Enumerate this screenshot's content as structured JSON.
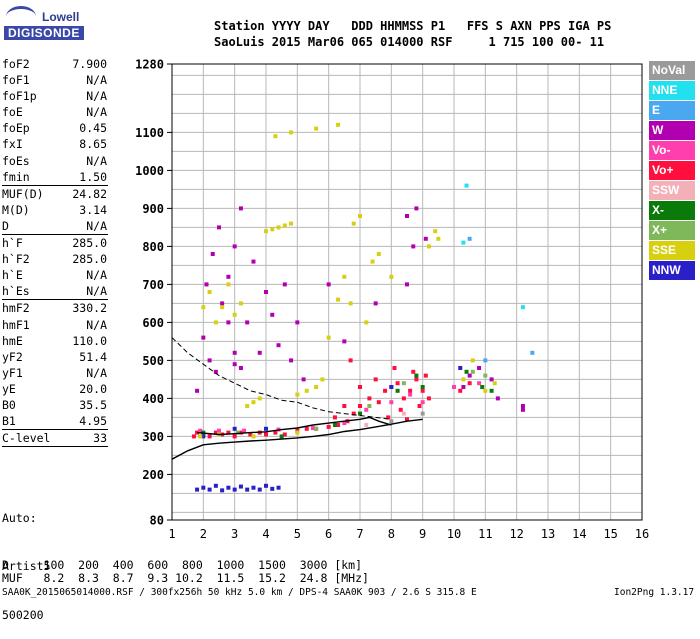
{
  "logo": {
    "top_text": "Lowell",
    "bottom_text": "DIGISONDE"
  },
  "header": {
    "line1": "Station YYYY DAY   DDD HHMMSS P1   FFS S AXN PPS IGA PS",
    "line2": "SaoLuis 2015 Mar06 065 014000 RSF     1 715 100 00- 11"
  },
  "params": [
    {
      "name": "foF2",
      "value": "7.900"
    },
    {
      "name": "foF1",
      "value": "N/A"
    },
    {
      "name": "foF1p",
      "value": "N/A"
    },
    {
      "name": "foE",
      "value": "N/A"
    },
    {
      "name": "foEp",
      "value": "0.45"
    },
    {
      "name": "fxI",
      "value": "8.65"
    },
    {
      "name": "foEs",
      "value": "N/A"
    },
    {
      "name": "fmin",
      "value": "1.50"
    },
    {
      "name": "MUF(D)",
      "value": "24.82"
    },
    {
      "name": "M(D)",
      "value": "3.14"
    },
    {
      "name": "D",
      "value": "N/A"
    },
    {
      "name": "h`F",
      "value": "285.0"
    },
    {
      "name": "h`F2",
      "value": "285.0"
    },
    {
      "name": "h`E",
      "value": "N/A"
    },
    {
      "name": "h`Es",
      "value": "N/A"
    },
    {
      "name": "hmF2",
      "value": "330.2"
    },
    {
      "name": "hmF1",
      "value": "N/A"
    },
    {
      "name": "hmE",
      "value": "110.0"
    },
    {
      "name": "yF2",
      "value": "51.4"
    },
    {
      "name": "yF1",
      "value": "N/A"
    },
    {
      "name": "yE",
      "value": "20.0"
    },
    {
      "name": "B0",
      "value": "35.5"
    },
    {
      "name": "B1",
      "value": "4.95"
    },
    {
      "name": "C-level",
      "value": "33"
    }
  ],
  "auto": {
    "line1": "Auto:",
    "line2": "Artist5",
    "line3": "500200"
  },
  "legend": [
    {
      "label": "NoVal",
      "color": "#9a9a9a"
    },
    {
      "label": "NNE",
      "color": "#22e0ee"
    },
    {
      "label": "E",
      "color": "#4aa8f0"
    },
    {
      "label": "W",
      "color": "#b000b0"
    },
    {
      "label": "Vo-",
      "color": "#ff3fae"
    },
    {
      "label": "Vo+",
      "color": "#ff0e3e"
    },
    {
      "label": "SSW",
      "color": "#f4b0b8"
    },
    {
      "label": "X-",
      "color": "#0a7a0a"
    },
    {
      "label": "X+",
      "color": "#7fb85a"
    },
    {
      "label": "SSE",
      "color": "#d7d010"
    },
    {
      "label": "NNW",
      "color": "#2a20c8"
    }
  ],
  "table": {
    "d_label": "D",
    "d_values": [
      "100",
      "200",
      "400",
      "600",
      "800",
      "1000",
      "1500",
      "3000"
    ],
    "d_unit": "[km]",
    "muf_label": "MUF",
    "muf_values": [
      "8.2",
      "8.3",
      "8.7",
      "9.3",
      "10.2",
      "11.5",
      "15.2",
      "24.8"
    ],
    "muf_unit": "[MHz]"
  },
  "footer": {
    "left": "SAA0K_2015065014000.RSF / 300fx256h 50 kHz 5.0 km / DPS-4 SAA0K 903 / 2.6 S 315.8 E",
    "right": "Ion2Png 1.3.17"
  },
  "chart_data": {
    "type": "scatter",
    "title": "",
    "xlabel": "",
    "ylabel": "",
    "xlim": [
      1,
      16
    ],
    "ylim": [
      80,
      1280
    ],
    "x_ticks": [
      1,
      2,
      3,
      4,
      5,
      6,
      7,
      8,
      9,
      10,
      11,
      12,
      13,
      14,
      15,
      16
    ],
    "y_ticks": [
      80,
      200,
      300,
      400,
      500,
      600,
      700,
      800,
      900,
      1000,
      1100,
      1280
    ],
    "grid": true,
    "series": [
      {
        "name": "Vo+",
        "color": "#ff0e3e",
        "points": [
          [
            1.7,
            300
          ],
          [
            1.8,
            310
          ],
          [
            2.0,
            305
          ],
          [
            2.2,
            300
          ],
          [
            2.4,
            310
          ],
          [
            2.6,
            305
          ],
          [
            2.8,
            310
          ],
          [
            3.0,
            300
          ],
          [
            3.2,
            310
          ],
          [
            3.5,
            305
          ],
          [
            3.8,
            310
          ],
          [
            4.0,
            305
          ],
          [
            4.3,
            310
          ],
          [
            4.6,
            305
          ],
          [
            5.0,
            315
          ],
          [
            5.3,
            320
          ],
          [
            5.6,
            320
          ],
          [
            6.0,
            325
          ],
          [
            6.3,
            330
          ],
          [
            6.6,
            340
          ],
          [
            6.8,
            360
          ],
          [
            7.0,
            380
          ],
          [
            7.3,
            400
          ],
          [
            7.6,
            390
          ],
          [
            7.8,
            420
          ],
          [
            8.0,
            430
          ],
          [
            8.2,
            440
          ],
          [
            8.4,
            400
          ],
          [
            8.6,
            420
          ],
          [
            8.8,
            450
          ],
          [
            9.0,
            420
          ],
          [
            9.2,
            400
          ],
          [
            6.7,
            500
          ],
          [
            7.5,
            450
          ],
          [
            8.1,
            480
          ],
          [
            8.7,
            470
          ],
          [
            9.1,
            460
          ],
          [
            7.0,
            430
          ],
          [
            6.5,
            380
          ],
          [
            6.2,
            350
          ],
          [
            8.3,
            370
          ],
          [
            8.9,
            380
          ],
          [
            7.9,
            350
          ],
          [
            8.5,
            345
          ],
          [
            10.5,
            440
          ],
          [
            10.2,
            420
          ]
        ]
      },
      {
        "name": "Vo-",
        "color": "#ff3fae",
        "points": [
          [
            1.9,
            315
          ],
          [
            2.5,
            315
          ],
          [
            3.3,
            315
          ],
          [
            4.4,
            318
          ],
          [
            5.5,
            322
          ],
          [
            6.5,
            335
          ],
          [
            7.2,
            370
          ],
          [
            8.0,
            390
          ],
          [
            8.6,
            410
          ],
          [
            9.0,
            390
          ],
          [
            10.0,
            430
          ],
          [
            10.8,
            440
          ]
        ]
      },
      {
        "name": "W",
        "color": "#b000b0",
        "points": [
          [
            1.8,
            420
          ],
          [
            2.0,
            560
          ],
          [
            2.1,
            700
          ],
          [
            2.3,
            780
          ],
          [
            2.5,
            850
          ],
          [
            2.6,
            650
          ],
          [
            2.8,
            720
          ],
          [
            3.0,
            800
          ],
          [
            3.2,
            900
          ],
          [
            3.4,
            600
          ],
          [
            3.6,
            760
          ],
          [
            3.8,
            520
          ],
          [
            4.0,
            680
          ],
          [
            4.2,
            620
          ],
          [
            4.4,
            540
          ],
          [
            4.6,
            700
          ],
          [
            4.8,
            500
          ],
          [
            5.0,
            600
          ],
          [
            5.2,
            450
          ],
          [
            6.0,
            700
          ],
          [
            6.5,
            550
          ],
          [
            7.5,
            650
          ],
          [
            8.5,
            700
          ],
          [
            8.8,
            900
          ],
          [
            8.5,
            880
          ],
          [
            8.7,
            800
          ],
          [
            9.1,
            820
          ],
          [
            3.0,
            490
          ],
          [
            3.2,
            480
          ],
          [
            3.0,
            520
          ],
          [
            2.8,
            600
          ],
          [
            2.4,
            470
          ],
          [
            2.2,
            500
          ],
          [
            10.5,
            460
          ],
          [
            10.3,
            430
          ],
          [
            10.8,
            480
          ],
          [
            11.2,
            450
          ],
          [
            11.4,
            400
          ],
          [
            12.2,
            370
          ],
          [
            12.2,
            380
          ]
        ]
      },
      {
        "name": "NNW",
        "color": "#2a20c8",
        "points": [
          [
            1.8,
            160
          ],
          [
            2.0,
            165
          ],
          [
            2.2,
            160
          ],
          [
            2.4,
            170
          ],
          [
            2.6,
            158
          ],
          [
            2.8,
            165
          ],
          [
            3.0,
            160
          ],
          [
            3.2,
            168
          ],
          [
            3.4,
            160
          ],
          [
            3.6,
            165
          ],
          [
            3.8,
            160
          ],
          [
            4.0,
            170
          ],
          [
            4.2,
            162
          ],
          [
            4.4,
            165
          ],
          [
            2.0,
            300
          ],
          [
            3.0,
            320
          ],
          [
            4.0,
            320
          ],
          [
            8.0,
            430
          ],
          [
            10.2,
            480
          ]
        ]
      },
      {
        "name": "SSE",
        "color": "#d7d010",
        "points": [
          [
            2.0,
            640
          ],
          [
            2.2,
            680
          ],
          [
            2.4,
            600
          ],
          [
            2.6,
            640
          ],
          [
            2.8,
            700
          ],
          [
            3.0,
            620
          ],
          [
            3.2,
            650
          ],
          [
            3.4,
            380
          ],
          [
            3.6,
            390
          ],
          [
            3.8,
            400
          ],
          [
            4.0,
            840
          ],
          [
            4.2,
            845
          ],
          [
            4.4,
            850
          ],
          [
            4.6,
            855
          ],
          [
            4.8,
            860
          ],
          [
            5.0,
            410
          ],
          [
            5.3,
            420
          ],
          [
            5.6,
            430
          ],
          [
            5.8,
            450
          ],
          [
            6.0,
            560
          ],
          [
            6.3,
            660
          ],
          [
            6.5,
            720
          ],
          [
            6.7,
            650
          ],
          [
            6.8,
            860
          ],
          [
            7.0,
            880
          ],
          [
            7.2,
            600
          ],
          [
            7.4,
            760
          ],
          [
            7.6,
            780
          ],
          [
            8.0,
            720
          ],
          [
            9.2,
            800
          ],
          [
            9.5,
            820
          ],
          [
            4.3,
            1090
          ],
          [
            4.8,
            1100
          ],
          [
            5.6,
            1110
          ],
          [
            6.3,
            1120
          ],
          [
            1.9,
            300
          ],
          [
            2.5,
            305
          ],
          [
            3.6,
            300
          ],
          [
            5.0,
            310
          ],
          [
            10.3,
            450
          ],
          [
            10.6,
            500
          ],
          [
            11.0,
            420
          ],
          [
            11.3,
            440
          ],
          [
            9.4,
            840
          ]
        ]
      },
      {
        "name": "X-",
        "color": "#0a7a0a",
        "points": [
          [
            2.0,
            310
          ],
          [
            4.5,
            300
          ],
          [
            6.2,
            330
          ],
          [
            7.0,
            360
          ],
          [
            8.2,
            420
          ],
          [
            8.8,
            460
          ],
          [
            9.0,
            430
          ],
          [
            10.4,
            470
          ],
          [
            10.9,
            430
          ],
          [
            11.2,
            420
          ]
        ]
      },
      {
        "name": "X+",
        "color": "#7fb85a",
        "points": [
          [
            3.1,
            310
          ],
          [
            5.6,
            320
          ],
          [
            7.3,
            380
          ],
          [
            8.4,
            440
          ],
          [
            10.6,
            470
          ],
          [
            11.0,
            460
          ]
        ]
      },
      {
        "name": "NNE",
        "color": "#22e0ee",
        "points": [
          [
            10.4,
            960
          ],
          [
            10.3,
            810
          ],
          [
            12.2,
            640
          ]
        ]
      },
      {
        "name": "E",
        "color": "#4aa8f0",
        "points": [
          [
            10.5,
            820
          ],
          [
            11.0,
            500
          ],
          [
            12.5,
            520
          ]
        ]
      },
      {
        "name": "SSW",
        "color": "#f4b0b8",
        "points": [
          [
            7.2,
            330
          ],
          [
            8.4,
            360
          ]
        ]
      },
      {
        "name": "NoVal",
        "color": "#9a9a9a",
        "points": [
          [
            8.0,
            340
          ],
          [
            9.0,
            360
          ]
        ]
      }
    ],
    "curves": [
      {
        "label": "model-profile",
        "color": "#000000",
        "points": [
          [
            1.0,
            560
          ],
          [
            1.5,
            520
          ],
          [
            2.0,
            490
          ],
          [
            2.5,
            460
          ],
          [
            3.0,
            440
          ],
          [
            3.5,
            420
          ],
          [
            4.0,
            410
          ],
          [
            4.5,
            395
          ],
          [
            5.0,
            390
          ],
          [
            5.5,
            375
          ],
          [
            6.0,
            365
          ],
          [
            6.5,
            360
          ],
          [
            7.0,
            355
          ],
          [
            7.5,
            350
          ],
          [
            8.0,
            345
          ]
        ]
      },
      {
        "label": "trace-lower",
        "color": "#000000",
        "points": [
          [
            1.0,
            240
          ],
          [
            1.5,
            262
          ],
          [
            2.0,
            278
          ],
          [
            2.5,
            282
          ],
          [
            3.0,
            285
          ],
          [
            3.5,
            288
          ],
          [
            4.0,
            290
          ],
          [
            4.5,
            293
          ],
          [
            5.0,
            296
          ],
          [
            5.5,
            300
          ],
          [
            6.0,
            305
          ],
          [
            6.5,
            313
          ],
          [
            7.0,
            318
          ],
          [
            7.5,
            325
          ],
          [
            8.0,
            332
          ],
          [
            8.5,
            340
          ],
          [
            9.0,
            345
          ]
        ]
      },
      {
        "label": "trace-upper",
        "color": "#000000",
        "points": [
          [
            1.8,
            310
          ],
          [
            2.5,
            305
          ],
          [
            3.0,
            307
          ],
          [
            3.5,
            310
          ],
          [
            4.0,
            312
          ],
          [
            4.5,
            318
          ],
          [
            5.0,
            322
          ],
          [
            5.5,
            330
          ],
          [
            6.0,
            335
          ],
          [
            6.5,
            340
          ],
          [
            7.0,
            345
          ],
          [
            7.3,
            350
          ],
          [
            7.6,
            340
          ],
          [
            8.0,
            330
          ]
        ]
      }
    ]
  }
}
